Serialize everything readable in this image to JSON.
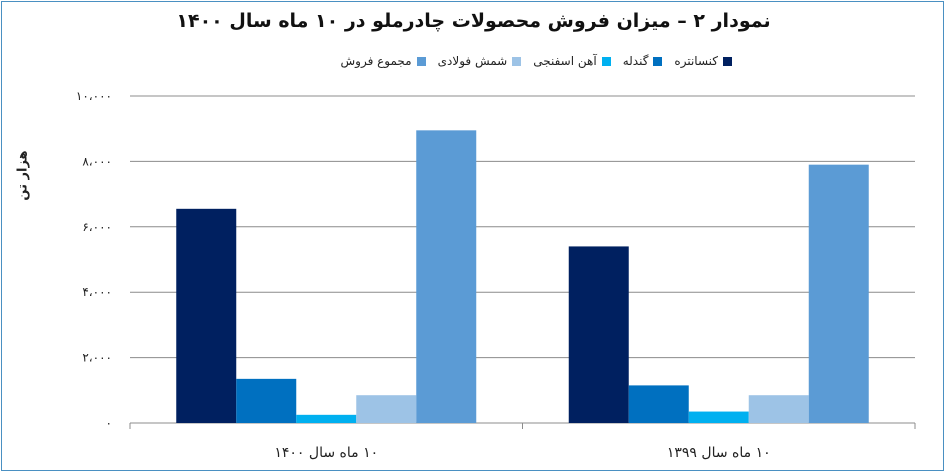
{
  "chart_data": {
    "type": "bar",
    "title": "نمودار ۲ – میزان فروش محصولات چادرملو در ۱۰ ماه سال ۱۴۰۰",
    "ylabel": "هزار تن",
    "xlabel": "",
    "ylim": [
      0,
      10000
    ],
    "yticks": [
      0,
      2000,
      4000,
      6000,
      8000,
      10000
    ],
    "ytick_labels": [
      "۰",
      "۲،۰۰۰",
      "۴،۰۰۰",
      "۶،۰۰۰",
      "۸،۰۰۰",
      "۱۰،۰۰۰"
    ],
    "categories": [
      "۱۰ ماه سال ۱۴۰۰",
      "۱۰ ماه سال ۱۳۹۹"
    ],
    "grid": true,
    "legend_position": "top",
    "series": [
      {
        "name": "کنسانتره",
        "color": "#002060",
        "values": [
          6550,
          5400
        ]
      },
      {
        "name": "گندله",
        "color": "#0070c0",
        "values": [
          1350,
          1150
        ]
      },
      {
        "name": "آهن اسفنجی",
        "color": "#00b0f0",
        "values": [
          250,
          350
        ]
      },
      {
        "name": "شمش فولادی",
        "color": "#9dc3e6",
        "values": [
          850,
          850
        ]
      },
      {
        "name": "مجموع فروش",
        "color": "#5b9bd5",
        "values": [
          8950,
          7900
        ]
      }
    ]
  }
}
